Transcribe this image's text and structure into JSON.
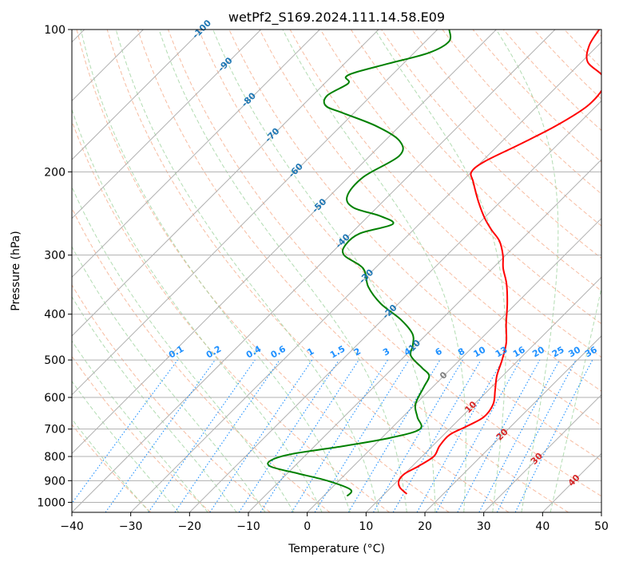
{
  "chart_data": {
    "type": "line",
    "subtype": "skew-t log-p diagram",
    "title": "wetPf2_S169.2024.111.14.58.E09",
    "xlabel": "Temperature (°C)",
    "ylabel": "Pressure (hPa)",
    "xlim": [
      -40,
      50
    ],
    "ylim": [
      1050,
      100
    ],
    "y_scale": "log",
    "x_ticks": [
      -40,
      -30,
      -20,
      -10,
      0,
      10,
      20,
      30,
      40,
      50
    ],
    "y_ticks": [
      100,
      200,
      300,
      400,
      500,
      600,
      700,
      800,
      900,
      1000
    ],
    "grid": true,
    "colors": {
      "temperature": "#ff0000",
      "dewpoint": "#008000",
      "isotherm_labels": "#1f77b4",
      "mixing_ratio": "#1e90ff",
      "saturated_adiabat_labels": "#d62728",
      "dry_adiabat": "#d2b48c",
      "moist_adiabat": "#f4a582",
      "green_dashed": "#98d098"
    },
    "series": [
      {
        "name": "",
        "role": "temperature",
        "points": [
          {
            "p": 960,
            "t": 13.8
          },
          {
            "p": 930,
            "t": 11.5
          },
          {
            "p": 900,
            "t": 10.2
          },
          {
            "p": 870,
            "t": 10.0
          },
          {
            "p": 840,
            "t": 11.0
          },
          {
            "p": 800,
            "t": 12.0
          },
          {
            "p": 760,
            "t": 11.2
          },
          {
            "p": 720,
            "t": 11.0
          },
          {
            "p": 690,
            "t": 12.5
          },
          {
            "p": 660,
            "t": 13.8
          },
          {
            "p": 620,
            "t": 13.2
          },
          {
            "p": 580,
            "t": 11.2
          },
          {
            "p": 540,
            "t": 9.0
          },
          {
            "p": 500,
            "t": 7.2
          },
          {
            "p": 460,
            "t": 5.0
          },
          {
            "p": 420,
            "t": 1.8
          },
          {
            "p": 380,
            "t": -1.5
          },
          {
            "p": 345,
            "t": -5.0
          },
          {
            "p": 320,
            "t": -8.2
          },
          {
            "p": 300,
            "t": -10.5
          },
          {
            "p": 280,
            "t": -13.5
          },
          {
            "p": 265,
            "t": -16.8
          },
          {
            "p": 250,
            "t": -20.0
          },
          {
            "p": 230,
            "t": -24.0
          },
          {
            "p": 210,
            "t": -28.0
          },
          {
            "p": 200,
            "t": -30.0
          },
          {
            "p": 190,
            "t": -29.5
          },
          {
            "p": 175,
            "t": -26.5
          },
          {
            "p": 160,
            "t": -23.5
          },
          {
            "p": 145,
            "t": -21.5
          },
          {
            "p": 132,
            "t": -22.0
          },
          {
            "p": 125,
            "t": -24.2
          },
          {
            "p": 117,
            "t": -29.0
          },
          {
            "p": 108,
            "t": -31.5
          },
          {
            "p": 100,
            "t": -32.5
          }
        ]
      },
      {
        "name": "",
        "role": "dewpoint",
        "points": [
          {
            "p": 970,
            "t": 4.0
          },
          {
            "p": 940,
            "t": 3.5
          },
          {
            "p": 900,
            "t": -2.0
          },
          {
            "p": 870,
            "t": -8.0
          },
          {
            "p": 840,
            "t": -14.0
          },
          {
            "p": 815,
            "t": -15.0
          },
          {
            "p": 790,
            "t": -12.5
          },
          {
            "p": 760,
            "t": -5.0
          },
          {
            "p": 730,
            "t": 1.5
          },
          {
            "p": 700,
            "t": 5.0
          },
          {
            "p": 660,
            "t": 2.5
          },
          {
            "p": 620,
            "t": 0.0
          },
          {
            "p": 570,
            "t": -1.5
          },
          {
            "p": 540,
            "t": -2.5
          },
          {
            "p": 520,
            "t": -5.0
          },
          {
            "p": 490,
            "t": -9.0
          },
          {
            "p": 465,
            "t": -10.5
          },
          {
            "p": 440,
            "t": -12.5
          },
          {
            "p": 410,
            "t": -17.0
          },
          {
            "p": 380,
            "t": -23.0
          },
          {
            "p": 350,
            "t": -28.0
          },
          {
            "p": 320,
            "t": -32.0
          },
          {
            "p": 300,
            "t": -37.5
          },
          {
            "p": 285,
            "t": -39.0
          },
          {
            "p": 270,
            "t": -38.5
          },
          {
            "p": 258,
            "t": -34.5
          },
          {
            "p": 248,
            "t": -38.0
          },
          {
            "p": 238,
            "t": -44.0
          },
          {
            "p": 225,
            "t": -47.0
          },
          {
            "p": 205,
            "t": -47.5
          },
          {
            "p": 185,
            "t": -45.0
          },
          {
            "p": 172,
            "t": -47.5
          },
          {
            "p": 160,
            "t": -54.0
          },
          {
            "p": 150,
            "t": -62.0
          },
          {
            "p": 145,
            "t": -66.0
          },
          {
            "p": 138,
            "t": -67.5
          },
          {
            "p": 130,
            "t": -66.0
          },
          {
            "p": 126,
            "t": -67.5
          },
          {
            "p": 123,
            "t": -66.5
          },
          {
            "p": 118,
            "t": -62.5
          },
          {
            "p": 112,
            "t": -57.5
          },
          {
            "p": 106,
            "t": -56.0
          },
          {
            "p": 100,
            "t": -58.0
          }
        ]
      }
    ],
    "isotherm_labels": [
      "-100",
      "-90",
      "-80",
      "-70",
      "-60",
      "-50",
      "-40",
      "-30",
      "-20",
      "-10"
    ],
    "isotherm_label_values": [
      -100,
      -90,
      -80,
      -70,
      -60,
      -50,
      -40,
      -30,
      -20,
      -10
    ],
    "mixing_ratio_labels": [
      "0.1",
      "0.2",
      "0.4",
      "0.6",
      "1",
      "1.5",
      "2",
      "3",
      "4",
      "6",
      "8",
      "10",
      "13",
      "16",
      "20",
      "25",
      "30",
      "36"
    ],
    "mixing_ratio_values": [
      0.1,
      0.2,
      0.4,
      0.6,
      1,
      1.5,
      2,
      3,
      4,
      6,
      8,
      10,
      13,
      16,
      20,
      25,
      30,
      36
    ],
    "wetbulb_labels": [
      "0",
      "10",
      "20",
      "30",
      "40"
    ],
    "wetbulb_values": [
      0,
      10,
      20,
      30,
      40
    ]
  }
}
